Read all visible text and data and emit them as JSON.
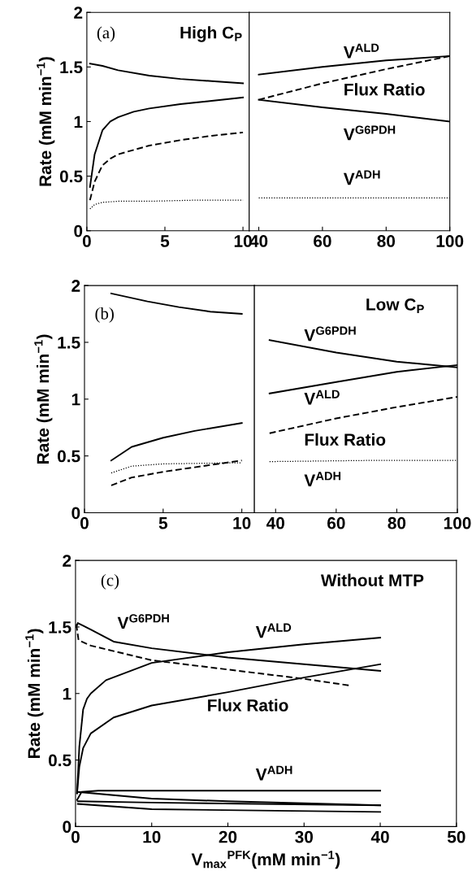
{
  "chart_data": [
    {
      "type": "line",
      "ylabel": "Rate (mM min$^{−1}$)",
      "xlim": [
        0,
        10.4
      ],
      "xticks": [
        0,
        5,
        10
      ],
      "ylim": [
        0,
        2
      ],
      "yticks": [
        0,
        0.5,
        1,
        1.5,
        2
      ],
      "grid": false,
      "legend": false,
      "annotations": [
        "(a)",
        "High C$_{P}$"
      ],
      "series": [
        {
          "color": "#000000",
          "line_style": "solid",
          "x": [
            0.2,
            1,
            2,
            4,
            6,
            8,
            10
          ],
          "values": [
            1.53,
            1.51,
            1.47,
            1.42,
            1.39,
            1.37,
            1.35
          ]
        },
        {
          "color": "#000000",
          "line_style": "solid",
          "x": [
            0.2,
            0.5,
            1,
            1.5,
            2,
            3,
            4,
            6,
            8,
            10
          ],
          "values": [
            0.4,
            0.7,
            0.92,
            1.0,
            1.04,
            1.09,
            1.12,
            1.16,
            1.19,
            1.22
          ]
        },
        {
          "color": "#000000",
          "line_style": "dashed",
          "x": [
            0.2,
            0.5,
            1,
            1.5,
            2,
            4,
            6,
            8,
            10
          ],
          "values": [
            0.28,
            0.45,
            0.6,
            0.66,
            0.7,
            0.78,
            0.83,
            0.87,
            0.9
          ]
        },
        {
          "color": "#000000",
          "line_style": "dotted",
          "x": [
            0.2,
            0.5,
            1,
            2,
            4,
            7,
            10
          ],
          "values": [
            0.2,
            0.24,
            0.26,
            0.27,
            0.27,
            0.28,
            0.28
          ]
        }
      ]
    },
    {
      "type": "line",
      "xlim": [
        37,
        100
      ],
      "xticks": [
        40,
        60,
        80,
        100
      ],
      "ylim": [
        0,
        2
      ],
      "yticks": [
        0,
        0.5,
        1,
        1.5,
        2
      ],
      "tick_labels": "x",
      "grid": false,
      "legend": false,
      "annotations": [
        "V$^{ALD}$",
        "Flux Ratio",
        "V$^{G6PDH}$",
        "V$^{ADH}$"
      ],
      "series": [
        {
          "color": "#000000",
          "line_style": "solid",
          "x": [
            40,
            60,
            80,
            100
          ],
          "values": [
            1.43,
            1.5,
            1.56,
            1.6
          ]
        },
        {
          "color": "#000000",
          "line_style": "dashed",
          "x": [
            40,
            60,
            80,
            100
          ],
          "values": [
            1.2,
            1.35,
            1.48,
            1.6
          ]
        },
        {
          "color": "#000000",
          "line_style": "solid",
          "x": [
            40,
            60,
            80,
            100
          ],
          "values": [
            1.2,
            1.13,
            1.07,
            1.0
          ]
        },
        {
          "color": "#000000",
          "line_style": "dotted",
          "x": [
            40,
            70,
            100
          ],
          "values": [
            0.3,
            0.3,
            0.3
          ]
        }
      ]
    },
    {
      "type": "line",
      "ylabel": "Rate (mM min$^{−1}$)",
      "xlim": [
        0,
        10.8
      ],
      "xticks": [
        0,
        5,
        10
      ],
      "ylim": [
        0,
        2
      ],
      "yticks": [
        0,
        0.5,
        1,
        1.5,
        2
      ],
      "grid": false,
      "legend": false,
      "annotations": [
        "(b)"
      ],
      "series": [
        {
          "color": "#000000",
          "line_style": "solid",
          "x": [
            1.7,
            4,
            6,
            8,
            10
          ],
          "values": [
            1.93,
            1.86,
            1.81,
            1.77,
            1.75
          ]
        },
        {
          "color": "#000000",
          "line_style": "solid",
          "x": [
            1.7,
            3,
            5,
            7,
            10
          ],
          "values": [
            0.46,
            0.58,
            0.66,
            0.72,
            0.79
          ]
        },
        {
          "color": "#000000",
          "line_style": "dotted",
          "x": [
            1.7,
            3,
            5,
            10
          ],
          "values": [
            0.35,
            0.41,
            0.43,
            0.44
          ]
        },
        {
          "color": "#000000",
          "line_style": "dashed",
          "x": [
            1.7,
            3,
            5,
            7,
            10
          ],
          "values": [
            0.24,
            0.31,
            0.36,
            0.4,
            0.46
          ]
        }
      ]
    },
    {
      "type": "line",
      "xlim": [
        33,
        100
      ],
      "xticks": [
        40,
        60,
        80,
        100
      ],
      "ylim": [
        0,
        2
      ],
      "yticks": [
        0,
        0.5,
        1,
        1.5,
        2
      ],
      "tick_labels": "x",
      "grid": false,
      "legend": false,
      "annotations": [
        "Low C$_{P}$",
        "V$^{G6PDH}$",
        "V$^{ALD}$",
        "Flux Ratio",
        "V$^{ADH}$"
      ],
      "series": [
        {
          "color": "#000000",
          "line_style": "solid",
          "x": [
            38,
            60,
            80,
            100
          ],
          "values": [
            1.52,
            1.41,
            1.33,
            1.28
          ]
        },
        {
          "color": "#000000",
          "line_style": "solid",
          "x": [
            38,
            60,
            80,
            100
          ],
          "values": [
            1.05,
            1.15,
            1.24,
            1.3
          ]
        },
        {
          "color": "#000000",
          "line_style": "dashed",
          "x": [
            38,
            60,
            80,
            100
          ],
          "values": [
            0.7,
            0.83,
            0.93,
            1.02
          ]
        },
        {
          "color": "#000000",
          "line_style": "dotted",
          "x": [
            38,
            70,
            100
          ],
          "values": [
            0.45,
            0.46,
            0.46
          ]
        }
      ]
    },
    {
      "type": "line",
      "xlabel": "V$_{max}$$^{PFK}$(mM min$^{−1}$)",
      "ylabel": "Rate (mM min$^{−1}$)",
      "xlim": [
        0,
        50
      ],
      "xticks": [
        0,
        10,
        20,
        30,
        40,
        50
      ],
      "ylim": [
        0,
        2
      ],
      "yticks": [
        0,
        0.5,
        1,
        1.5,
        2
      ],
      "grid": false,
      "legend": false,
      "annotations": [
        "(c)",
        "Without MTP",
        "V$^{G6PDH}$",
        "V$^{ALD}$",
        "Flux Ratio",
        "V$^{ADH}$"
      ],
      "series": [
        {
          "color": "#000000",
          "line_style": "solid",
          "x": [
            0.1,
            0.3,
            1,
            2,
            5,
            10,
            20,
            30,
            40
          ],
          "values": [
            1.5,
            1.53,
            1.51,
            1.48,
            1.39,
            1.34,
            1.27,
            1.22,
            1.17
          ]
        },
        {
          "color": "#000000",
          "line_style": "dashed",
          "x": [
            0.1,
            0.4,
            2,
            10,
            20,
            30,
            36
          ],
          "values": [
            1.52,
            1.4,
            1.36,
            1.25,
            1.18,
            1.11,
            1.06
          ]
        },
        {
          "color": "#000000",
          "line_style": "solid",
          "x": [
            0.2,
            0.5,
            1,
            1.5,
            2,
            4,
            10,
            20,
            30,
            40
          ],
          "values": [
            0.25,
            0.6,
            0.88,
            0.96,
            1.0,
            1.1,
            1.23,
            1.31,
            1.37,
            1.42
          ]
        },
        {
          "color": "#000000",
          "line_style": "solid",
          "x": [
            0.2,
            0.5,
            1,
            2,
            5,
            10,
            20,
            30,
            40
          ],
          "values": [
            0.25,
            0.45,
            0.59,
            0.7,
            0.82,
            0.91,
            1.01,
            1.12,
            1.22
          ]
        },
        {
          "color": "#000000",
          "line_style": "solid",
          "x": [
            0.2,
            0.8,
            3,
            40
          ],
          "values": [
            0.2,
            0.26,
            0.27,
            0.27
          ]
        },
        {
          "color": "#000000",
          "line_style": "solid",
          "x": [
            0.3,
            10,
            20,
            40
          ],
          "values": [
            0.26,
            0.21,
            0.19,
            0.16
          ]
        },
        {
          "color": "#000000",
          "line_style": "solid",
          "x": [
            0.3,
            10,
            40
          ],
          "values": [
            0.19,
            0.18,
            0.16
          ]
        },
        {
          "color": "#000000",
          "line_style": "solid",
          "x": [
            0.3,
            10,
            40
          ],
          "values": [
            0.17,
            0.13,
            0.11
          ]
        }
      ]
    }
  ]
}
